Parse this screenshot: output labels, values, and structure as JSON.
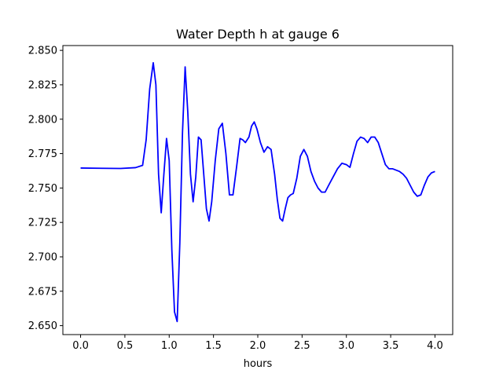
{
  "chart_data": {
    "type": "line",
    "title": "Water Depth h at gauge 6",
    "xlabel": "hours",
    "ylabel": "",
    "xlim": [
      -0.2,
      4.2
    ],
    "ylim": [
      2.6435,
      2.8535
    ],
    "grid": false,
    "x_ticks": [
      0.0,
      0.5,
      1.0,
      1.5,
      2.0,
      2.5,
      3.0,
      3.5,
      4.0
    ],
    "x_tick_labels": [
      "0.0",
      "0.5",
      "1.0",
      "1.5",
      "2.0",
      "2.5",
      "3.0",
      "3.5",
      "4.0"
    ],
    "y_ticks": [
      2.65,
      2.675,
      2.7,
      2.725,
      2.75,
      2.775,
      2.8,
      2.825,
      2.85
    ],
    "y_tick_labels": [
      "2.650",
      "2.675",
      "2.700",
      "2.725",
      "2.750",
      "2.775",
      "2.800",
      "2.825",
      "2.850"
    ],
    "series": [
      {
        "color": "#0000ff",
        "x": [
          0.0,
          0.45,
          0.62,
          0.7,
          0.74,
          0.78,
          0.82,
          0.85,
          0.88,
          0.91,
          0.94,
          0.97,
          1.0,
          1.03,
          1.06,
          1.09,
          1.12,
          1.15,
          1.18,
          1.21,
          1.24,
          1.27,
          1.3,
          1.33,
          1.36,
          1.39,
          1.42,
          1.45,
          1.48,
          1.52,
          1.56,
          1.6,
          1.64,
          1.68,
          1.72,
          1.76,
          1.8,
          1.83,
          1.86,
          1.9,
          1.93,
          1.96,
          1.99,
          2.03,
          2.07,
          2.11,
          2.15,
          2.19,
          2.22,
          2.25,
          2.28,
          2.31,
          2.34,
          2.37,
          2.4,
          2.44,
          2.48,
          2.52,
          2.56,
          2.6,
          2.64,
          2.68,
          2.72,
          2.76,
          2.8,
          2.85,
          2.9,
          2.95,
          3.0,
          3.04,
          3.08,
          3.12,
          3.16,
          3.2,
          3.24,
          3.28,
          3.32,
          3.36,
          3.4,
          3.44,
          3.48,
          3.52,
          3.56,
          3.6,
          3.64,
          3.68,
          3.72,
          3.76,
          3.8,
          3.84,
          3.88,
          3.92,
          3.96,
          4.0
        ],
        "y": [
          2.7645,
          2.7642,
          2.7648,
          2.7665,
          2.785,
          2.822,
          2.841,
          2.825,
          2.76,
          2.732,
          2.76,
          2.786,
          2.77,
          2.705,
          2.66,
          2.653,
          2.71,
          2.79,
          2.838,
          2.805,
          2.76,
          2.74,
          2.758,
          2.787,
          2.785,
          2.76,
          2.735,
          2.726,
          2.74,
          2.77,
          2.793,
          2.797,
          2.775,
          2.745,
          2.745,
          2.765,
          2.786,
          2.785,
          2.783,
          2.787,
          2.795,
          2.798,
          2.793,
          2.783,
          2.776,
          2.78,
          2.778,
          2.76,
          2.742,
          2.728,
          2.726,
          2.735,
          2.743,
          2.745,
          2.746,
          2.757,
          2.773,
          2.778,
          2.773,
          2.762,
          2.755,
          2.75,
          2.747,
          2.747,
          2.752,
          2.758,
          2.764,
          2.768,
          2.767,
          2.765,
          2.775,
          2.784,
          2.787,
          2.786,
          2.783,
          2.787,
          2.787,
          2.783,
          2.775,
          2.767,
          2.764,
          2.764,
          2.763,
          2.762,
          2.76,
          2.757,
          2.752,
          2.747,
          2.744,
          2.745,
          2.752,
          2.758,
          2.761,
          2.762
        ]
      }
    ]
  }
}
